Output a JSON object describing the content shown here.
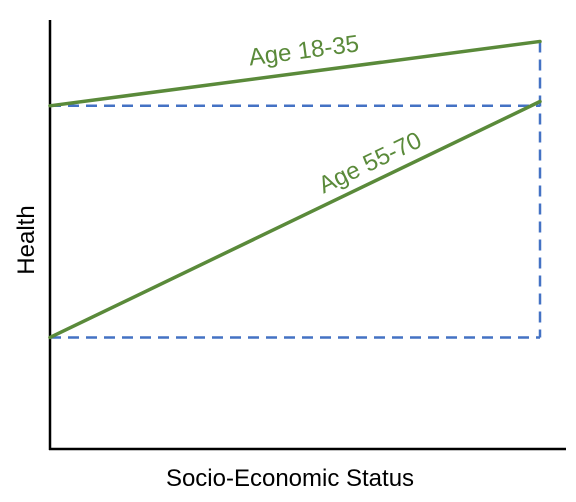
{
  "chart_data": {
    "type": "line",
    "title": "",
    "xlabel": "Socio-Economic Status",
    "ylabel": "Health",
    "xlim": [
      0,
      1
    ],
    "ylim": [
      0,
      1
    ],
    "grid": false,
    "legend": "none",
    "x": [
      0,
      1
    ],
    "series": [
      {
        "name": "Age 18-35",
        "values": [
          0.8,
          0.95
        ],
        "color": "#5a8a3a"
      },
      {
        "name": "Age 55-70",
        "values": [
          0.26,
          0.81
        ],
        "color": "#5a8a3a"
      }
    ],
    "guides": {
      "color": "#4472c4",
      "style": "dashed"
    }
  }
}
